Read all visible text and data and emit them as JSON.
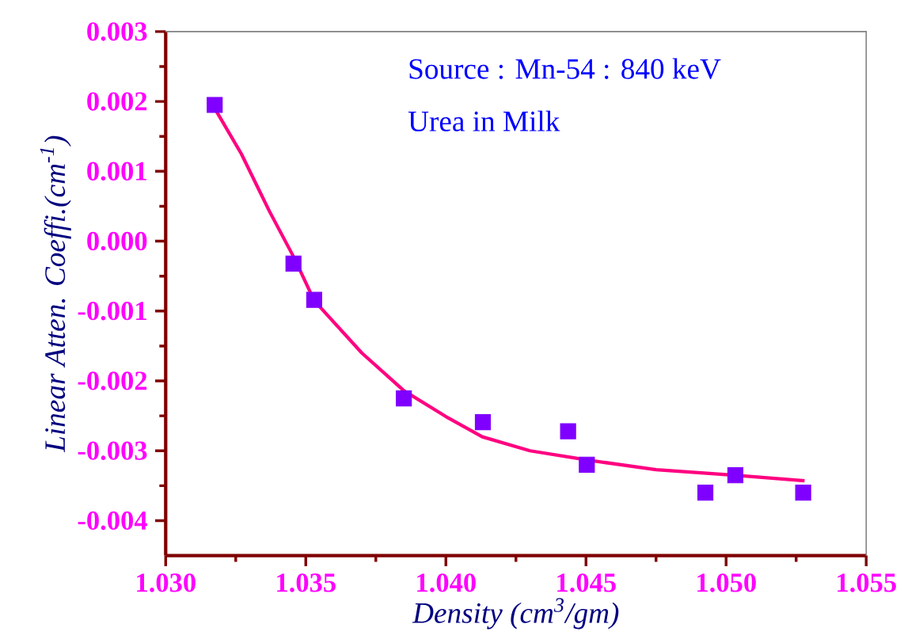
{
  "chart_data": {
    "type": "scatter",
    "xlabel": "Density (cm$^{3}$/gm)",
    "ylabel": "Linear Atten. Coeffi.(cm$^{-1}$)",
    "annotations": [
      "Source : Mn-54 : 840 keV",
      "Urea in Milk"
    ],
    "xlim": [
      1.03,
      1.055
    ],
    "xticks": [
      {
        "value": 1.03,
        "label": "1.030"
      },
      {
        "value": 1.035,
        "label": "1.035"
      },
      {
        "value": 1.04,
        "label": "1.040"
      },
      {
        "value": 1.045,
        "label": "1.045"
      },
      {
        "value": 1.05,
        "label": "1.050"
      },
      {
        "value": 1.055,
        "label": "1.055"
      }
    ],
    "ylim": [
      -0.0045,
      0.003
    ],
    "yticks": [
      {
        "value": -0.004,
        "label": "-0.004"
      },
      {
        "value": -0.003,
        "label": "-0.003"
      },
      {
        "value": -0.002,
        "label": "-0.002"
      },
      {
        "value": -0.001,
        "label": "-0.001"
      },
      {
        "value": 0.0,
        "label": "0.000"
      },
      {
        "value": 0.001,
        "label": "0.001"
      },
      {
        "value": 0.002,
        "label": "0.002"
      },
      {
        "value": 0.003,
        "label": "0.003"
      }
    ],
    "series": [
      {
        "marker": "square",
        "color": "#8000ff",
        "x": [
          1.03175,
          1.03456,
          1.0353,
          1.0385,
          1.04132,
          1.04436,
          1.04503,
          1.04926,
          1.05033,
          1.05275
        ],
        "values": [
          0.00195,
          -0.00032,
          -0.00084,
          -0.00225,
          -0.00259,
          -0.00272,
          -0.0032,
          -0.0036,
          -0.00335,
          -0.0036
        ]
      },
      {
        "type": "line",
        "marker": "none",
        "line_style": "solid",
        "color": "#ff0080",
        "x": [
          1.03175,
          1.0327,
          1.0337,
          1.0346,
          1.0353,
          1.037,
          1.0385,
          1.04,
          1.0413,
          1.043,
          1.045,
          1.0475,
          1.0503,
          1.0528
        ],
        "values": [
          0.0019,
          0.00125,
          0.00043,
          -0.00025,
          -0.00085,
          -0.0016,
          -0.00214,
          -0.00251,
          -0.0028,
          -0.003,
          -0.00313,
          -0.00327,
          -0.00335,
          -0.00343
        ]
      }
    ]
  }
}
